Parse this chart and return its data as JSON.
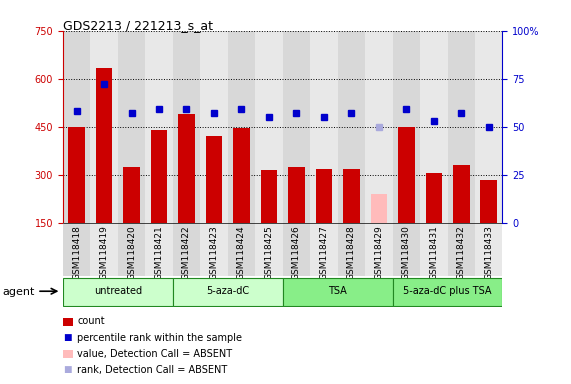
{
  "title": "GDS2213 / 221213_s_at",
  "samples": [
    "GSM118418",
    "GSM118419",
    "GSM118420",
    "GSM118421",
    "GSM118422",
    "GSM118423",
    "GSM118424",
    "GSM118425",
    "GSM118426",
    "GSM118427",
    "GSM118428",
    "GSM118429",
    "GSM118430",
    "GSM118431",
    "GSM118432",
    "GSM118433"
  ],
  "counts": [
    450,
    635,
    325,
    440,
    490,
    420,
    445,
    315,
    325,
    318,
    318,
    null,
    450,
    305,
    330,
    285
  ],
  "counts_absent": [
    null,
    null,
    null,
    null,
    null,
    null,
    null,
    null,
    null,
    null,
    null,
    240,
    null,
    null,
    null,
    null
  ],
  "percentile_ranks": [
    58,
    72,
    57,
    59,
    59,
    57,
    59,
    55,
    57,
    55,
    57,
    null,
    59,
    53,
    57,
    50
  ],
  "ranks_absent": [
    null,
    null,
    null,
    null,
    null,
    null,
    null,
    null,
    null,
    null,
    null,
    50,
    null,
    null,
    null,
    null
  ],
  "bar_color_present": "#cc0000",
  "bar_color_absent": "#ffbbbb",
  "dot_color_present": "#0000cc",
  "dot_color_absent": "#aaaadd",
  "ylim_left": [
    150,
    750
  ],
  "ylim_right": [
    0,
    100
  ],
  "yticks_left": [
    150,
    300,
    450,
    600,
    750
  ],
  "yticks_right": [
    0,
    25,
    50,
    75,
    100
  ],
  "ytick_labels_left": [
    "150",
    "300",
    "450",
    "600",
    "750"
  ],
  "ytick_labels_right": [
    "0",
    "25",
    "50",
    "75",
    "100%"
  ],
  "groups": [
    {
      "label": "untreated",
      "start": 0,
      "end": 4,
      "color": "#ccffcc"
    },
    {
      "label": "5-aza-dC",
      "start": 4,
      "end": 8,
      "color": "#ccffcc"
    },
    {
      "label": "TSA",
      "start": 8,
      "end": 12,
      "color": "#88ee88"
    },
    {
      "label": "5-aza-dC plus TSA",
      "start": 12,
      "end": 16,
      "color": "#88ee88"
    }
  ],
  "agent_label": "agent",
  "bg_color": "#ffffff",
  "tick_color_left": "#cc0000",
  "tick_color_right": "#0000cc",
  "bar_width": 0.6,
  "col_bg_even": "#d8d8d8",
  "col_bg_odd": "#e8e8e8"
}
